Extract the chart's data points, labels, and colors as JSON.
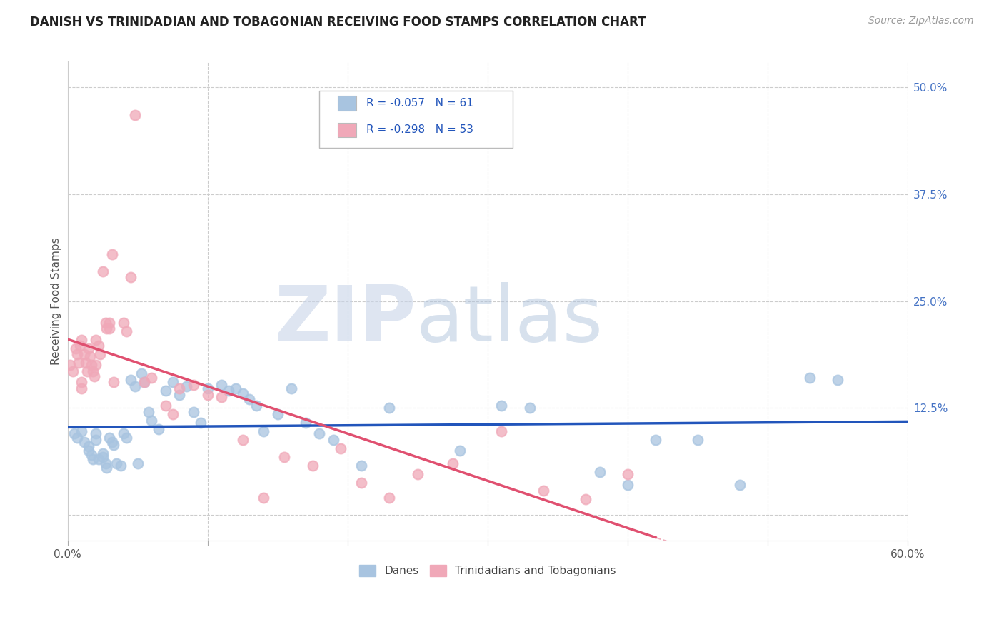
{
  "title": "DANISH VS TRINIDADIAN AND TOBAGONIAN RECEIVING FOOD STAMPS CORRELATION CHART",
  "source": "Source: ZipAtlas.com",
  "ylabel": "Receiving Food Stamps",
  "xlim": [
    0.0,
    0.6
  ],
  "ylim": [
    -0.03,
    0.53
  ],
  "yticks_right": [
    0.0,
    0.125,
    0.25,
    0.375,
    0.5
  ],
  "yticklabels_right": [
    "",
    "12.5%",
    "25.0%",
    "37.5%",
    "50.0%"
  ],
  "blue_R": "-0.057",
  "blue_N": "61",
  "pink_R": "-0.298",
  "pink_N": "53",
  "blue_label": "Danes",
  "pink_label": "Trinidadians and Tobagonians",
  "blue_color": "#a8c4e0",
  "pink_color": "#f0a8b8",
  "blue_line_color": "#2255bb",
  "pink_line_color": "#e05070",
  "blue_scatter_x": [
    0.005,
    0.007,
    0.01,
    0.012,
    0.015,
    0.015,
    0.017,
    0.018,
    0.02,
    0.02,
    0.022,
    0.025,
    0.025,
    0.027,
    0.028,
    0.03,
    0.032,
    0.033,
    0.035,
    0.038,
    0.04,
    0.042,
    0.045,
    0.048,
    0.05,
    0.053,
    0.055,
    0.058,
    0.06,
    0.065,
    0.07,
    0.075,
    0.08,
    0.085,
    0.09,
    0.095,
    0.1,
    0.11,
    0.115,
    0.12,
    0.125,
    0.13,
    0.135,
    0.14,
    0.15,
    0.16,
    0.17,
    0.18,
    0.19,
    0.21,
    0.23,
    0.28,
    0.31,
    0.33,
    0.38,
    0.4,
    0.42,
    0.45,
    0.48,
    0.53,
    0.55
  ],
  "blue_scatter_y": [
    0.095,
    0.09,
    0.098,
    0.085,
    0.08,
    0.075,
    0.07,
    0.065,
    0.095,
    0.088,
    0.065,
    0.072,
    0.068,
    0.06,
    0.055,
    0.09,
    0.085,
    0.082,
    0.06,
    0.058,
    0.095,
    0.09,
    0.158,
    0.15,
    0.06,
    0.165,
    0.155,
    0.12,
    0.11,
    0.1,
    0.145,
    0.155,
    0.14,
    0.15,
    0.12,
    0.108,
    0.148,
    0.152,
    0.145,
    0.148,
    0.142,
    0.135,
    0.128,
    0.098,
    0.118,
    0.148,
    0.108,
    0.095,
    0.088,
    0.058,
    0.125,
    0.075,
    0.128,
    0.125,
    0.05,
    0.035,
    0.088,
    0.088,
    0.035,
    0.16,
    0.158
  ],
  "pink_scatter_x": [
    0.002,
    0.004,
    0.006,
    0.007,
    0.008,
    0.009,
    0.01,
    0.01,
    0.01,
    0.012,
    0.013,
    0.014,
    0.015,
    0.016,
    0.017,
    0.018,
    0.019,
    0.02,
    0.02,
    0.022,
    0.023,
    0.025,
    0.027,
    0.028,
    0.03,
    0.03,
    0.032,
    0.033,
    0.04,
    0.042,
    0.045,
    0.048,
    0.055,
    0.06,
    0.07,
    0.075,
    0.08,
    0.09,
    0.1,
    0.11,
    0.125,
    0.14,
    0.155,
    0.175,
    0.195,
    0.21,
    0.23,
    0.25,
    0.275,
    0.31,
    0.34,
    0.37,
    0.4
  ],
  "pink_scatter_y": [
    0.175,
    0.168,
    0.195,
    0.188,
    0.178,
    0.198,
    0.205,
    0.155,
    0.148,
    0.188,
    0.178,
    0.168,
    0.195,
    0.185,
    0.175,
    0.168,
    0.162,
    0.205,
    0.175,
    0.198,
    0.188,
    0.285,
    0.225,
    0.218,
    0.225,
    0.218,
    0.305,
    0.155,
    0.225,
    0.215,
    0.278,
    0.468,
    0.155,
    0.16,
    0.128,
    0.118,
    0.148,
    0.152,
    0.14,
    0.138,
    0.088,
    0.02,
    0.068,
    0.058,
    0.078,
    0.038,
    0.02,
    0.048,
    0.06,
    0.098,
    0.028,
    0.018,
    0.048
  ],
  "background_color": "#ffffff",
  "grid_color": "#cccccc"
}
